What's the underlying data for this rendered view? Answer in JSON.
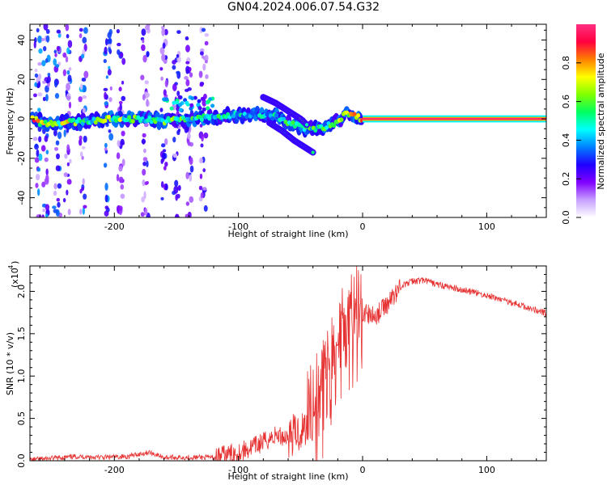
{
  "title": "GN04.2024.006.07.54.G32",
  "colors": {
    "snr_line": "#e63232",
    "colorbar_stops": [
      "#ffffff",
      "#c8a0ff",
      "#8000ff",
      "#2000ff",
      "#0080ff",
      "#00ffff",
      "#00ff60",
      "#80ff00",
      "#ffff00",
      "#ff8000",
      "#ff0040",
      "#ff3080"
    ]
  },
  "chart_data": [
    {
      "type": "heatmap",
      "title": "GN04.2024.006.07.54.G32",
      "xlabel": "Height of straight line (km)",
      "ylabel": "Frequency (Hz)",
      "xlim": [
        -268,
        148
      ],
      "ylim": [
        -50,
        48
      ],
      "xticks": [
        -200,
        -100,
        0,
        100
      ],
      "xtick_labels": [
        "-200",
        "-100",
        "0",
        "100"
      ],
      "yticks": [
        -40,
        -20,
        0,
        20,
        40
      ],
      "ytick_labels": [
        "-40",
        "-20",
        "0",
        "20",
        "40"
      ],
      "ridge": {
        "description_points_x": [
          -260,
          -240,
          -220,
          -200,
          -180,
          -160,
          -140,
          -120,
          -100,
          -90,
          -80,
          -70,
          -60,
          -50,
          -40,
          -35,
          -30,
          -25,
          -20,
          -15,
          -10,
          -5,
          0,
          50,
          100,
          148
        ],
        "frequency_y": [
          -2,
          -2,
          -1,
          0,
          0,
          -1,
          0,
          1,
          2,
          2,
          2,
          1,
          -2,
          -4,
          -5,
          -5,
          -4,
          -3,
          -1,
          2,
          3,
          1,
          0,
          0,
          0,
          0
        ],
        "amplitude": [
          0.7,
          0.75,
          0.6,
          0.7,
          0.6,
          0.65,
          0.6,
          0.55,
          0.5,
          0.55,
          0.5,
          0.55,
          0.55,
          0.6,
          0.6,
          0.65,
          0.7,
          0.7,
          0.65,
          0.75,
          0.85,
          0.9,
          1.0,
          1.0,
          1.0,
          1.0
        ]
      },
      "upper_branch": {
        "x": [
          -80,
          -70,
          -60,
          -50,
          -45
        ],
        "y": [
          11,
          8,
          4,
          0,
          -3
        ]
      },
      "lower_branch": {
        "x": [
          -75,
          -65,
          -55,
          -45,
          -40
        ],
        "y": [
          -2,
          -6,
          -11,
          -15,
          -17
        ]
      },
      "colorbar": {
        "label": "Normalized spectral amplitude",
        "ticks": [
          0.0,
          0.2,
          0.4,
          0.6,
          0.8
        ],
        "tick_labels": [
          "0.0",
          "0.2",
          "0.4",
          "0.6",
          "0.8"
        ],
        "range": [
          0,
          1
        ]
      }
    },
    {
      "type": "line",
      "xlabel": "Height of straight line (km)",
      "ylabel": "SNR (10 * v/v)",
      "multiplier_label": "(x10",
      "multiplier_exponent": "4",
      "multiplier_close": ")",
      "xlim": [
        -268,
        148
      ],
      "ylim": [
        0,
        2.3
      ],
      "xticks": [
        -200,
        -100,
        0,
        100
      ],
      "xtick_labels": [
        "-200",
        "-100",
        "0",
        "100"
      ],
      "yticks": [
        0.0,
        0.5,
        1.0,
        1.5,
        2.0
      ],
      "ytick_labels": [
        "0.0",
        "0.5",
        "1.0",
        "1.5",
        "2.0"
      ],
      "x": [
        -268,
        -250,
        -230,
        -210,
        -190,
        -172,
        -160,
        -140,
        -120,
        -110,
        -100,
        -90,
        -80,
        -70,
        -60,
        -50,
        -45,
        -40,
        -35,
        -30,
        -25,
        -20,
        -15,
        -10,
        -5,
        0,
        10,
        20,
        30,
        40,
        50,
        60,
        80,
        100,
        120,
        148
      ],
      "y": [
        0.01,
        0.03,
        0.05,
        0.04,
        0.05,
        0.1,
        0.04,
        0.04,
        0.04,
        0.07,
        0.1,
        0.15,
        0.22,
        0.3,
        0.28,
        0.35,
        0.4,
        0.45,
        0.6,
        0.85,
        1.05,
        1.25,
        1.4,
        1.5,
        1.6,
        1.75,
        1.7,
        1.85,
        2.05,
        2.12,
        2.13,
        2.08,
        2.02,
        1.95,
        1.87,
        1.74
      ]
    }
  ]
}
